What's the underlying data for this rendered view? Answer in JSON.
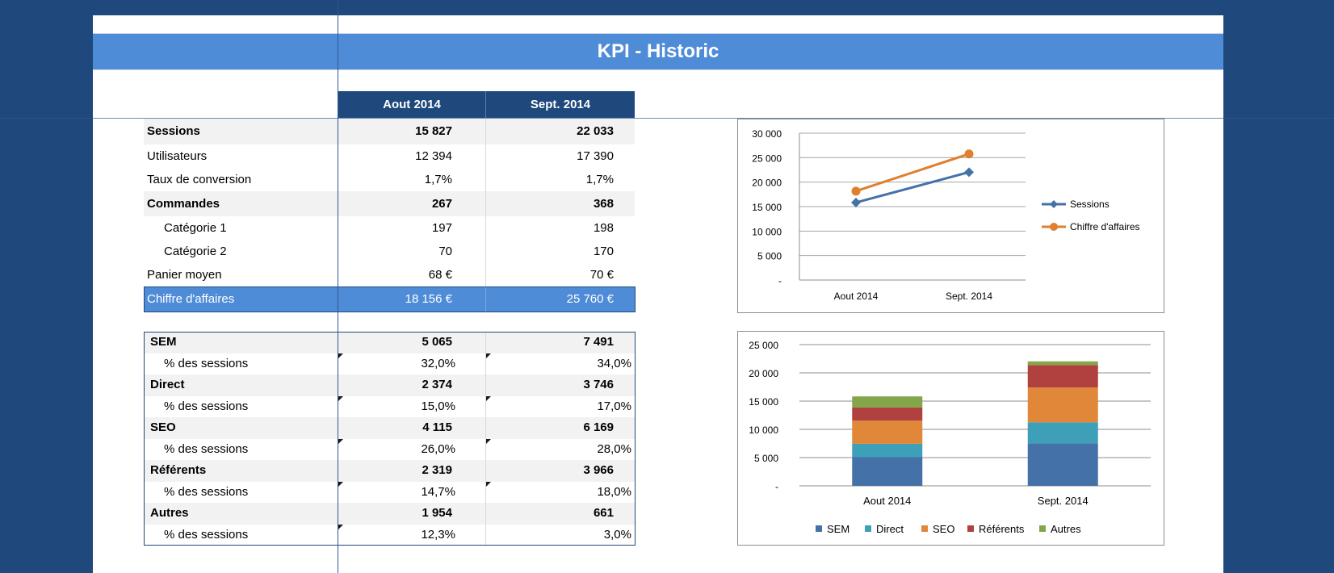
{
  "title": "KPI - Historic",
  "columns": [
    "Aout 2014",
    "Sept. 2014"
  ],
  "kpi_rows": [
    {
      "label": "Sessions",
      "v1": "15 827",
      "v2": "22 033",
      "bold": true,
      "shade": true,
      "indent": 0
    },
    {
      "label": "Utilisateurs",
      "v1": "12 394",
      "v2": "17 390",
      "bold": false,
      "shade": false,
      "indent": 0
    },
    {
      "label": "Taux de conversion",
      "v1": "1,7%",
      "v2": "1,7%",
      "bold": false,
      "shade": false,
      "indent": 0
    },
    {
      "label": "Commandes",
      "v1": "267",
      "v2": "368",
      "bold": true,
      "shade": true,
      "indent": 0
    },
    {
      "label": "Catégorie 1",
      "v1": "197",
      "v2": "198",
      "bold": false,
      "shade": false,
      "indent": 1
    },
    {
      "label": "Catégorie 2",
      "v1": "70",
      "v2": "170",
      "bold": false,
      "shade": false,
      "indent": 1
    },
    {
      "label": "Panier moyen",
      "v1": "68 €",
      "v2": "70 €",
      "bold": false,
      "shade": false,
      "indent": 0
    }
  ],
  "total_row": {
    "label": "Chiffre d'affaires",
    "v1": "18 156 €",
    "v2": "25 760 €"
  },
  "channel_rows": [
    {
      "label": "SEM",
      "v1": "5 065",
      "v2": "7 491",
      "pct_label": "% des sessions",
      "p1": "32,0%",
      "p2": "34,0%"
    },
    {
      "label": "Direct",
      "v1": "2 374",
      "v2": "3 746",
      "pct_label": "% des sessions",
      "p1": "15,0%",
      "p2": "17,0%"
    },
    {
      "label": "SEO",
      "v1": "4 115",
      "v2": "6 169",
      "pct_label": "% des sessions",
      "p1": "26,0%",
      "p2": "28,0%"
    },
    {
      "label": "Référents",
      "v1": "2 319",
      "v2": "3 966",
      "pct_label": "% des sessions",
      "p1": "14,7%",
      "p2": "18,0%"
    },
    {
      "label": "Autres",
      "v1": "1 954",
      "v2": "661",
      "pct_label": "% des sessions",
      "p1": "12,3%",
      "p2": "3,0%"
    }
  ],
  "colors": {
    "header_dark": "#1f497d",
    "title_blue": "#4f8cd8",
    "series_blue": "#4472a8",
    "series_orange": "#e07f2e",
    "sem": "#4472a8",
    "direct": "#3e9fb8",
    "seo": "#e0873a",
    "referents": "#b0413e",
    "autres": "#83a64a"
  },
  "chart_data": [
    {
      "type": "line",
      "categories": [
        "Aout 2014",
        "Sept. 2014"
      ],
      "series": [
        {
          "name": "Sessions",
          "values": [
            15827,
            22033
          ],
          "marker": "diamond"
        },
        {
          "name": "Chiffre d'affaires",
          "values": [
            18156,
            25760
          ],
          "marker": "circle"
        }
      ],
      "ylim": [
        0,
        30000
      ],
      "yticks": [
        "-",
        "5 000",
        "10 000",
        "15 000",
        "20 000",
        "25 000",
        "30 000"
      ],
      "grid": true,
      "legend": "right"
    },
    {
      "type": "bar",
      "stacked": true,
      "categories": [
        "Aout 2014",
        "Sept. 2014"
      ],
      "series": [
        {
          "name": "SEM",
          "values": [
            5065,
            7491
          ]
        },
        {
          "name": "Direct",
          "values": [
            2374,
            3746
          ]
        },
        {
          "name": "SEO",
          "values": [
            4115,
            6169
          ]
        },
        {
          "name": "Référents",
          "values": [
            2319,
            3966
          ]
        },
        {
          "name": "Autres",
          "values": [
            1954,
            661
          ]
        }
      ],
      "ylim": [
        0,
        25000
      ],
      "yticks": [
        "-",
        "5 000",
        "10 000",
        "15 000",
        "20 000",
        "25 000"
      ],
      "grid": true,
      "legend": "bottom"
    }
  ]
}
